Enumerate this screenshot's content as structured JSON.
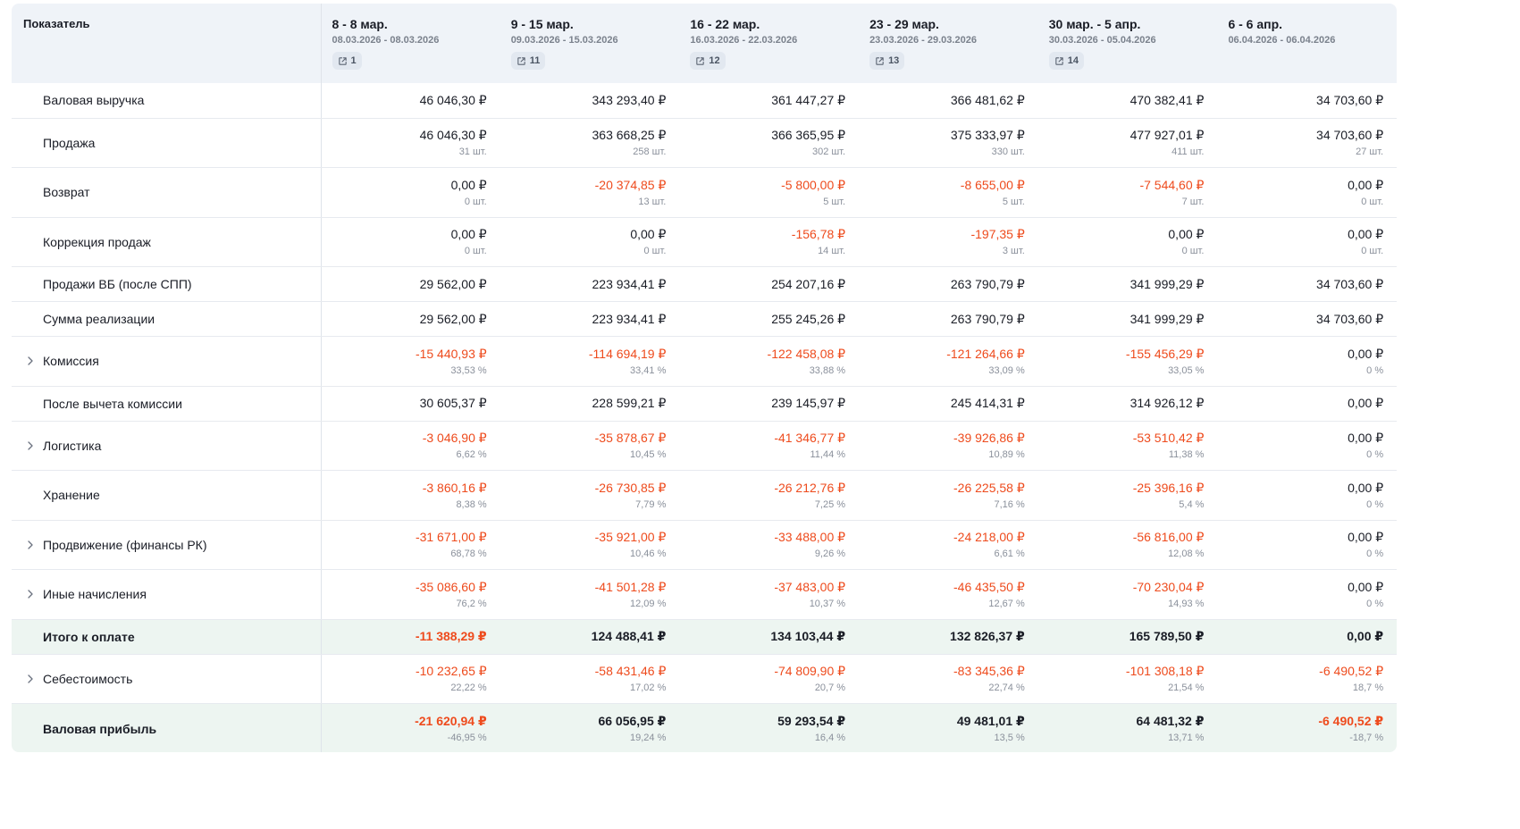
{
  "header": {
    "label": "Показатель",
    "weeks": [
      {
        "title": "8 - 8 мар.",
        "dates": "08.03.2026 - 08.03.2026",
        "badge": "1"
      },
      {
        "title": "9 - 15 мар.",
        "dates": "09.03.2026 - 15.03.2026",
        "badge": "11"
      },
      {
        "title": "16 - 22 мар.",
        "dates": "16.03.2026 - 22.03.2026",
        "badge": "12"
      },
      {
        "title": "23 - 29 мар.",
        "dates": "23.03.2026 - 29.03.2026",
        "badge": "13"
      },
      {
        "title": "30 мар. - 5 апр.",
        "dates": "30.03.2026 - 05.04.2026",
        "badge": "14"
      },
      {
        "title": "6 - 6 апр.",
        "dates": "06.04.2026 - 06.04.2026",
        "badge": ""
      }
    ]
  },
  "rows": [
    {
      "label": "Валовая выручка",
      "expandable": false,
      "total": false,
      "cells": [
        {
          "v": "46 046,30 ₽",
          "neg": false
        },
        {
          "v": "343 293,40 ₽",
          "neg": false
        },
        {
          "v": "361 447,27 ₽",
          "neg": false
        },
        {
          "v": "366 481,62 ₽",
          "neg": false
        },
        {
          "v": "470 382,41 ₽",
          "neg": false
        },
        {
          "v": "34 703,60 ₽",
          "neg": false
        }
      ]
    },
    {
      "label": "Продажа",
      "expandable": false,
      "total": false,
      "cells": [
        {
          "v": "46 046,30 ₽",
          "s": "31 шт.",
          "neg": false
        },
        {
          "v": "363 668,25 ₽",
          "s": "258 шт.",
          "neg": false
        },
        {
          "v": "366 365,95 ₽",
          "s": "302 шт.",
          "neg": false
        },
        {
          "v": "375 333,97 ₽",
          "s": "330 шт.",
          "neg": false
        },
        {
          "v": "477 927,01 ₽",
          "s": "411 шт.",
          "neg": false
        },
        {
          "v": "34 703,60 ₽",
          "s": "27 шт.",
          "neg": false
        }
      ]
    },
    {
      "label": "Возврат",
      "expandable": false,
      "total": false,
      "cells": [
        {
          "v": "0,00 ₽",
          "s": "0 шт.",
          "neg": false
        },
        {
          "v": "-20 374,85 ₽",
          "s": "13 шт.",
          "neg": true
        },
        {
          "v": "-5 800,00 ₽",
          "s": "5 шт.",
          "neg": true
        },
        {
          "v": "-8 655,00 ₽",
          "s": "5 шт.",
          "neg": true
        },
        {
          "v": "-7 544,60 ₽",
          "s": "7 шт.",
          "neg": true
        },
        {
          "v": "0,00 ₽",
          "s": "0 шт.",
          "neg": false
        }
      ]
    },
    {
      "label": "Коррекция продаж",
      "expandable": false,
      "total": false,
      "cells": [
        {
          "v": "0,00 ₽",
          "s": "0 шт.",
          "neg": false
        },
        {
          "v": "0,00 ₽",
          "s": "0 шт.",
          "neg": false
        },
        {
          "v": "-156,78 ₽",
          "s": "14 шт.",
          "neg": true
        },
        {
          "v": "-197,35 ₽",
          "s": "3 шт.",
          "neg": true
        },
        {
          "v": "0,00 ₽",
          "s": "0 шт.",
          "neg": false
        },
        {
          "v": "0,00 ₽",
          "s": "0 шт.",
          "neg": false
        }
      ]
    },
    {
      "label": "Продажи ВБ (после СПП)",
      "expandable": false,
      "total": false,
      "cells": [
        {
          "v": "29 562,00 ₽",
          "neg": false
        },
        {
          "v": "223 934,41 ₽",
          "neg": false
        },
        {
          "v": "254 207,16 ₽",
          "neg": false
        },
        {
          "v": "263 790,79 ₽",
          "neg": false
        },
        {
          "v": "341 999,29 ₽",
          "neg": false
        },
        {
          "v": "34 703,60 ₽",
          "neg": false
        }
      ]
    },
    {
      "label": "Сумма реализации",
      "expandable": false,
      "total": false,
      "cells": [
        {
          "v": "29 562,00 ₽",
          "neg": false
        },
        {
          "v": "223 934,41 ₽",
          "neg": false
        },
        {
          "v": "255 245,26 ₽",
          "neg": false
        },
        {
          "v": "263 790,79 ₽",
          "neg": false
        },
        {
          "v": "341 999,29 ₽",
          "neg": false
        },
        {
          "v": "34 703,60 ₽",
          "neg": false
        }
      ]
    },
    {
      "label": "Комиссия",
      "expandable": true,
      "total": false,
      "cells": [
        {
          "v": "-15 440,93 ₽",
          "s": "33,53 %",
          "neg": true
        },
        {
          "v": "-114 694,19 ₽",
          "s": "33,41 %",
          "neg": true
        },
        {
          "v": "-122 458,08 ₽",
          "s": "33,88 %",
          "neg": true
        },
        {
          "v": "-121 264,66 ₽",
          "s": "33,09 %",
          "neg": true
        },
        {
          "v": "-155 456,29 ₽",
          "s": "33,05 %",
          "neg": true
        },
        {
          "v": "0,00 ₽",
          "s": "0 %",
          "neg": false
        }
      ]
    },
    {
      "label": "После вычета комиссии",
      "expandable": false,
      "total": false,
      "cells": [
        {
          "v": "30 605,37 ₽",
          "neg": false
        },
        {
          "v": "228 599,21 ₽",
          "neg": false
        },
        {
          "v": "239 145,97 ₽",
          "neg": false
        },
        {
          "v": "245 414,31 ₽",
          "neg": false
        },
        {
          "v": "314 926,12 ₽",
          "neg": false
        },
        {
          "v": "0,00 ₽",
          "neg": false
        }
      ]
    },
    {
      "label": "Логистика",
      "expandable": true,
      "total": false,
      "cells": [
        {
          "v": "-3 046,90 ₽",
          "s": "6,62 %",
          "neg": true
        },
        {
          "v": "-35 878,67 ₽",
          "s": "10,45 %",
          "neg": true
        },
        {
          "v": "-41 346,77 ₽",
          "s": "11,44 %",
          "neg": true
        },
        {
          "v": "-39 926,86 ₽",
          "s": "10,89 %",
          "neg": true
        },
        {
          "v": "-53 510,42 ₽",
          "s": "11,38 %",
          "neg": true
        },
        {
          "v": "0,00 ₽",
          "s": "0 %",
          "neg": false
        }
      ]
    },
    {
      "label": "Хранение",
      "expandable": false,
      "total": false,
      "cells": [
        {
          "v": "-3 860,16 ₽",
          "s": "8,38 %",
          "neg": true
        },
        {
          "v": "-26 730,85 ₽",
          "s": "7,79 %",
          "neg": true
        },
        {
          "v": "-26 212,76 ₽",
          "s": "7,25 %",
          "neg": true
        },
        {
          "v": "-26 225,58 ₽",
          "s": "7,16 %",
          "neg": true
        },
        {
          "v": "-25 396,16 ₽",
          "s": "5,4 %",
          "neg": true
        },
        {
          "v": "0,00 ₽",
          "s": "0 %",
          "neg": false
        }
      ]
    },
    {
      "label": "Продвижение (финансы РК)",
      "expandable": true,
      "total": false,
      "cells": [
        {
          "v": "-31 671,00 ₽",
          "s": "68,78 %",
          "neg": true
        },
        {
          "v": "-35 921,00 ₽",
          "s": "10,46 %",
          "neg": true
        },
        {
          "v": "-33 488,00 ₽",
          "s": "9,26 %",
          "neg": true
        },
        {
          "v": "-24 218,00 ₽",
          "s": "6,61 %",
          "neg": true
        },
        {
          "v": "-56 816,00 ₽",
          "s": "12,08 %",
          "neg": true
        },
        {
          "v": "0,00 ₽",
          "s": "0 %",
          "neg": false
        }
      ]
    },
    {
      "label": "Иные начисления",
      "expandable": true,
      "total": false,
      "cells": [
        {
          "v": "-35 086,60 ₽",
          "s": "76,2 %",
          "neg": true
        },
        {
          "v": "-41 501,28 ₽",
          "s": "12,09 %",
          "neg": true
        },
        {
          "v": "-37 483,00 ₽",
          "s": "10,37 %",
          "neg": true
        },
        {
          "v": "-46 435,50 ₽",
          "s": "12,67 %",
          "neg": true
        },
        {
          "v": "-70 230,04 ₽",
          "s": "14,93 %",
          "neg": true
        },
        {
          "v": "0,00 ₽",
          "s": "0 %",
          "neg": false
        }
      ]
    },
    {
      "label": "Итого к оплате",
      "expandable": false,
      "total": true,
      "cells": [
        {
          "v": "-11 388,29 ₽",
          "neg": true
        },
        {
          "v": "124 488,41 ₽",
          "neg": false
        },
        {
          "v": "134 103,44 ₽",
          "neg": false
        },
        {
          "v": "132 826,37 ₽",
          "neg": false
        },
        {
          "v": "165 789,50 ₽",
          "neg": false
        },
        {
          "v": "0,00 ₽",
          "neg": false
        }
      ]
    },
    {
      "label": "Себестоимость",
      "expandable": true,
      "total": false,
      "cells": [
        {
          "v": "-10 232,65 ₽",
          "s": "22,22 %",
          "neg": true
        },
        {
          "v": "-58 431,46 ₽",
          "s": "17,02 %",
          "neg": true
        },
        {
          "v": "-74 809,90 ₽",
          "s": "20,7 %",
          "neg": true
        },
        {
          "v": "-83 345,36 ₽",
          "s": "22,74 %",
          "neg": true
        },
        {
          "v": "-101 308,18 ₽",
          "s": "21,54 %",
          "neg": true
        },
        {
          "v": "-6 490,52 ₽",
          "s": "18,7 %",
          "neg": true
        }
      ]
    },
    {
      "label": "Валовая прибыль",
      "expandable": false,
      "total": true,
      "cells": [
        {
          "v": "-21 620,94 ₽",
          "s": "-46,95 %",
          "neg": true
        },
        {
          "v": "66 056,95 ₽",
          "s": "19,24 %",
          "neg": false
        },
        {
          "v": "59 293,54 ₽",
          "s": "16,4 %",
          "neg": false
        },
        {
          "v": "49 481,01 ₽",
          "s": "13,5 %",
          "neg": false
        },
        {
          "v": "64 481,32 ₽",
          "s": "13,71 %",
          "neg": false
        },
        {
          "v": "-6 490,52 ₽",
          "s": "-18,7 %",
          "neg": true
        }
      ]
    }
  ],
  "colors": {
    "negative": "#ee4b1d",
    "header_bg": "#eff3f8",
    "total_bg": "#edf5f1"
  },
  "icons": {
    "badge": "external-link-icon",
    "expand": "chevron-right-icon"
  }
}
